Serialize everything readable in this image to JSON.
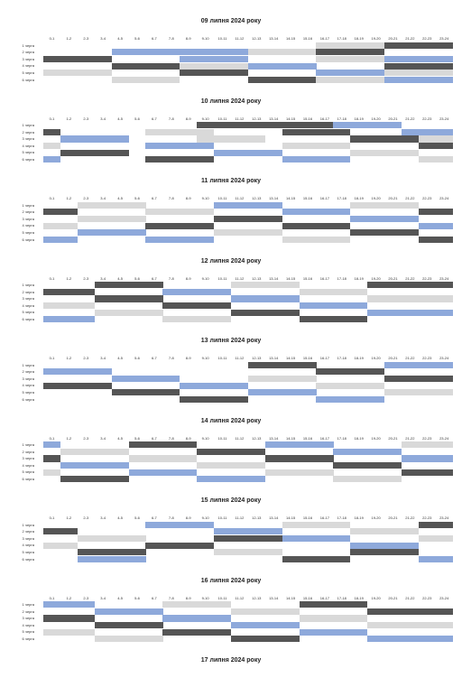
{
  "hours": [
    "0-1",
    "1-2",
    "2-3",
    "3-4",
    "4-5",
    "5-6",
    "6-7",
    "7-8",
    "8-9",
    "9-10",
    "10-11",
    "11-12",
    "12-13",
    "13-14",
    "14-15",
    "15-16",
    "16-17",
    "17-18",
    "18-19",
    "19-20",
    "20-21",
    "21-22",
    "22-23",
    "23-24"
  ],
  "queues": [
    "1 черга",
    "2 черга",
    "3 черга",
    "4 черга",
    "5 черга",
    "6 черга"
  ],
  "colors": {
    "O": "#555555",
    "B": "#8ea9db",
    "L": "#d9d9d9",
    "W": "#ffffff"
  },
  "legend_codes": {
    "O": "dark",
    "B": "blue",
    "L": "light-grey",
    "W": "none"
  },
  "days": [
    {
      "title": "09 липня 2024 року",
      "rows": [
        "WWWWWWWWWWWWWWWWLLLLOOOO",
        "WWWWBBBBBBBBLLLLOOOOWWWW",
        "OOOOWWWWBBBBWWWWLLLLBBBB",
        "WWWWOOOOLLLLBBBBWWWWOOOO",
        "LLLLWWWWOOOOWWWWBBBBLLLL",
        "WWWWLLLLWWWWOOOOLLLLBBBB"
      ]
    },
    {
      "title": "10 липня 2024 року",
      "rows": [
        "WWWWWWWWWOOOOOOOOBBBBWWW",
        "OWWWWWLLLLWWWWOOOOWWWBBB",
        "WBBBBWWWWLLLLWWWWWOOOOLL",
        "LWWWWWBBBBWWWWLLLLWWWWOO",
        "WOOOOWWWWWBBBBWWWWLLLLWW",
        "BWWWWWOOOOWWWWBBBBWWWWLL"
      ]
    },
    {
      "title": "11 липня 2024 року",
      "rows": [
        "WWLLLLWWWWBBBBWWWWLLLLWW",
        "OOWWWWLLLLWWWWBBBBWWWWOO",
        "WWLLLLWWWWOOOOWWWWBBBBWW",
        "LLWWWWOOOOWWWWOOOOWWWWBB",
        "WWBBBBWWWWLLLLWWWWOOOOWW",
        "BBWWWWBBBBWWWWLLLLWWWWOO"
      ]
    },
    {
      "title": "12 липня 2024 року",
      "rows": [
        "WWWOOOOWWWWLLLLWWWWOOOOO",
        "OOOWWWWBBBBWWWWLLLLWWWWW",
        "WWWOOOOWWWWBBBBWWWWLLLLL",
        "LLLWWWWOOOOWWWWBBBBWWWWW",
        "WWWLLLLWWWWOOOOWWWWBBBBB",
        "BBBWWWWLLLLWWWWOOOOWWWWW"
      ]
    },
    {
      "title": "13 липня 2024 року",
      "rows": [
        "WWWWWWWWWWWWOOOOWWWWBBBB",
        "BBBBWWWWWWWWWWWWOOOOWWWW",
        "WWWWBBBBWWWWLLLLWWWWOOOO",
        "OOOOWWWWBBBBWWWWLLLLWWWW",
        "WWWWOOOOWWWWBBBBWWWWLLLL",
        "WWWWWWWWOOOOWWWWBBBBWWWW"
      ]
    },
    {
      "title": "14 липня 2024 року",
      "rows": [
        "BWWWWOOOOWWWWBBBBWWWWLLL",
        "WLLLLWWWWOOOOWWWWBBBBWWW",
        "OWWWWLLLLWWWWOOOOWWWWBBB",
        "WBBBBWWWWLLLLWWWWOOOOWWW",
        "LWWWWBBBBWWWWLLLLWWWWOOO",
        "WOOOOWWWWBBBBWWWWLLLLWWW"
      ]
    },
    {
      "title": "15 липня 2024 року",
      "rows": [
        "WWWWWWBBBBWWWWLLLLWWWWOO",
        "OOWWWWWWWWBBBBWWWWLLLLWW",
        "WWLLLLWWWWOOOOBBBBWWWWLL",
        "LLWWWWOOOOWWWWWWWWBBBBWW",
        "WWOOOOWWWWLLLLWWWWOOOOWW",
        "WWBBBBWWWWWWWWOOOOWWWWBB"
      ]
    },
    {
      "title": "16 липня 2024 року",
      "rows": [
        "BBBWWWWLLLLWWWWOOOOWWWWW",
        "WWWBBBBWWWWLLLLWWWWOOOOO",
        "OOOWWWWBBBBWWWWLLLLWWWWW",
        "WWWOOOOWWWWBBBBWWWWLLLLL",
        "LLLWWWWOOOOWWWWBBBBWWWWW",
        "WWWLLLLWWWWOOOOWWWWBBBBB"
      ]
    },
    {
      "title": "17 липня 2024 року",
      "rows": []
    }
  ]
}
